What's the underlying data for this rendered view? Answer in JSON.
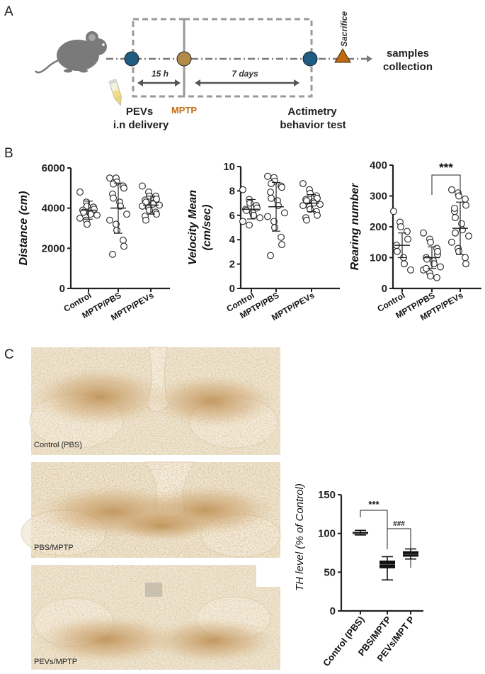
{
  "panels": {
    "a": "A",
    "b": "B",
    "c": "C"
  },
  "timeline": {
    "interval_1": "15 h",
    "interval_2": "7 days",
    "step_1": [
      "PEVs",
      "i.n delivery"
    ],
    "step_2": "MPTP",
    "step_3": [
      "Actimetry",
      "behavior test"
    ],
    "sacrifice": "Sacrifice",
    "final": [
      "samples",
      "collection"
    ],
    "colors": {
      "blue": "#1e5c82",
      "brown": "#b38a4a",
      "orange": "#bf6a10",
      "dash": "#9a9a9a"
    },
    "icons": [
      "mouse-icon",
      "tube-icon"
    ]
  },
  "micrographs": [
    {
      "label": "Control (PBS)",
      "stain_intensity": 0.55
    },
    {
      "label": "PBS/MPTP",
      "stain_intensity": 0.75
    },
    {
      "label": "PEVs/MPTP",
      "stain_intensity": 0.6
    }
  ],
  "chart_data": [
    {
      "type": "scatter",
      "ylabel": "Distance (cm)",
      "categories": [
        "Control",
        "MPTP/PBS",
        "MPTP/PEVs"
      ],
      "ylim": [
        0,
        6000
      ],
      "yticks": [
        0,
        2000,
        4000,
        6000
      ],
      "series": [
        {
          "values": [
            4800,
            4300,
            4100,
            4050,
            3950,
            3900,
            3800,
            3750,
            3700,
            3650,
            3500,
            3400,
            3200
          ],
          "mean": 3900,
          "err": 450
        },
        {
          "values": [
            5500,
            5500,
            5300,
            5100,
            5000,
            4700,
            4500,
            4300,
            4100,
            3700,
            3400,
            3200,
            2900,
            2400,
            2100,
            1700,
            5200
          ],
          "mean": 4000,
          "err": 1250
        },
        {
          "values": [
            5100,
            4800,
            4600,
            4600,
            4450,
            4400,
            4300,
            4250,
            4200,
            4150,
            4100,
            4000,
            3900,
            3800,
            3700,
            3600,
            3400
          ],
          "mean": 4150,
          "err": 450
        }
      ]
    },
    {
      "type": "scatter",
      "ylabel": "Velocity Mean (cm/sec)",
      "categories": [
        "Control",
        "MPTP/PBS",
        "MPTP/PEVs"
      ],
      "ylim": [
        0,
        10
      ],
      "yticks": [
        0,
        2,
        4,
        6,
        8,
        10
      ],
      "series": [
        {
          "values": [
            8.1,
            7.3,
            7.0,
            6.8,
            6.6,
            6.5,
            6.4,
            6.2,
            6.0,
            5.8,
            5.5,
            5.2
          ],
          "mean": 6.5,
          "err": 0.8
        },
        {
          "values": [
            9.2,
            9.1,
            8.8,
            8.4,
            8.3,
            7.9,
            7.4,
            7.2,
            6.8,
            6.2,
            5.9,
            5.5,
            5.0,
            4.2,
            3.6,
            2.7,
            8.6
          ],
          "mean": 6.7,
          "err": 2.0
        },
        {
          "values": [
            8.6,
            8.1,
            7.8,
            7.6,
            7.4,
            7.3,
            7.2,
            7.1,
            7.0,
            6.9,
            6.8,
            6.7,
            6.5,
            6.3,
            6.0,
            5.8,
            5.6
          ],
          "mean": 7.0,
          "err": 0.7
        }
      ]
    },
    {
      "type": "scatter",
      "ylabel": "Rearing number",
      "categories": [
        "Control",
        "MPTP/PBS",
        "MPTP/PEVs"
      ],
      "ylim": [
        0,
        400
      ],
      "yticks": [
        0,
        100,
        200,
        300,
        400
      ],
      "significance": {
        "from": 1,
        "to": 2,
        "label": "***"
      },
      "series": [
        {
          "values": [
            250,
            215,
            200,
            185,
            160,
            140,
            120,
            100,
            80,
            60
          ],
          "mean": 140,
          "err": 40
        },
        {
          "values": [
            180,
            160,
            150,
            130,
            110,
            100,
            95,
            90,
            80,
            70,
            60,
            50,
            40,
            35,
            120,
            65
          ],
          "mean": 100,
          "err": 35
        },
        {
          "values": [
            320,
            310,
            300,
            290,
            270,
            250,
            230,
            210,
            190,
            170,
            150,
            130,
            120,
            100,
            80,
            260,
            180
          ],
          "mean": 195,
          "err": 85
        }
      ]
    },
    {
      "type": "box",
      "ylabel": "TH level  (% of Control)",
      "categories": [
        "Control (PBS)",
        "PBS/MPTP",
        "PEVs/MPT P"
      ],
      "ylim": [
        0,
        150
      ],
      "yticks": [
        0,
        50,
        100,
        150
      ],
      "boxes": [
        {
          "min": 98,
          "q1": 99,
          "median": 100,
          "q3": 102,
          "max": 104
        },
        {
          "min": 40,
          "q1": 55,
          "median": 60,
          "q3": 65,
          "max": 70
        },
        {
          "min": 67,
          "q1": 70,
          "median": 73,
          "q3": 77,
          "max": 80
        }
      ],
      "significance": [
        {
          "from": 0,
          "to": 1,
          "label": "***"
        },
        {
          "from": 1,
          "to": 2,
          "label": "###"
        }
      ]
    }
  ]
}
